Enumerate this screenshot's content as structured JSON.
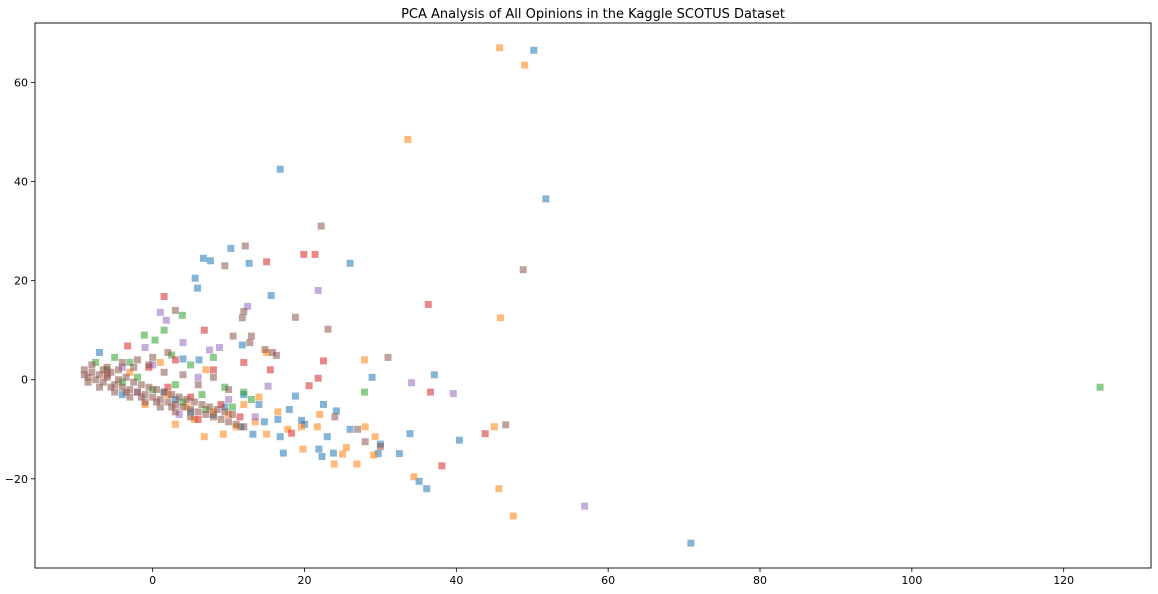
{
  "chart_data": {
    "type": "scatter",
    "title": "PCA Analysis of All Opinions in the Kaggle SCOTUS Dataset",
    "xlabel": "",
    "ylabel": "",
    "xlim": [
      -15.5,
      131.5
    ],
    "ylim": [
      -38,
      72
    ],
    "x_ticks": [
      0,
      20,
      40,
      60,
      80,
      100,
      120
    ],
    "y_ticks": [
      -20,
      0,
      20,
      40,
      60
    ],
    "x_tick_labels": [
      "0",
      "20",
      "40",
      "60",
      "80",
      "100",
      "120"
    ],
    "y_tick_labels": [
      "−20",
      "0",
      "20",
      "40",
      "60"
    ],
    "grid": false,
    "legend": "none",
    "marker": "square",
    "marker_opacity": 0.55,
    "series": [
      {
        "color": "#1f77b4",
        "points": [
          [
            50.2,
            66.5
          ],
          [
            16.8,
            42.5
          ],
          [
            51.8,
            36.5
          ],
          [
            10.3,
            26.5
          ],
          [
            6.7,
            24.5
          ],
          [
            7.6,
            24.0
          ],
          [
            12.7,
            23.5
          ],
          [
            26.0,
            23.5
          ],
          [
            5.6,
            20.5
          ],
          [
            5.9,
            18.5
          ],
          [
            15.6,
            17.0
          ],
          [
            11.8,
            7.0
          ],
          [
            4.0,
            4.2
          ],
          [
            6.1,
            4.0
          ],
          [
            28.9,
            0.5
          ],
          [
            37.1,
            1.0
          ],
          [
            18.8,
            -3.3
          ],
          [
            22.5,
            -5.0
          ],
          [
            24.2,
            -6.3
          ],
          [
            16.5,
            -8.0
          ],
          [
            19.6,
            -8.2
          ],
          [
            14.7,
            -8.5
          ],
          [
            11.6,
            -9.5
          ],
          [
            33.9,
            -10.9
          ],
          [
            13.2,
            -11.0
          ],
          [
            16.8,
            -11.5
          ],
          [
            23.0,
            -11.5
          ],
          [
            40.4,
            -12.2
          ],
          [
            21.9,
            -14.0
          ],
          [
            17.2,
            -14.8
          ],
          [
            23.8,
            -14.8
          ],
          [
            29.7,
            -14.9
          ],
          [
            32.5,
            -14.9
          ],
          [
            22.3,
            -15.5
          ],
          [
            35.1,
            -20.5
          ],
          [
            36.1,
            -22.0
          ],
          [
            70.9,
            -33.0
          ],
          [
            -7.0,
            5.5
          ],
          [
            8.0,
            -7.0
          ],
          [
            3.0,
            -4.0
          ],
          [
            9.5,
            -5.5
          ],
          [
            -4.0,
            -3.0
          ],
          [
            1.5,
            -2.5
          ],
          [
            5.0,
            -6.5
          ],
          [
            12.0,
            -3.0
          ],
          [
            18.0,
            -6.0
          ],
          [
            26.0,
            -10.0
          ],
          [
            30.0,
            -13.0
          ],
          [
            14.0,
            -5.0
          ],
          [
            20.0,
            -9.0
          ]
        ]
      },
      {
        "color": "#ff7f0e",
        "points": [
          [
            45.7,
            67.0
          ],
          [
            49.0,
            63.5
          ],
          [
            33.6,
            48.5
          ],
          [
            45.8,
            12.5
          ],
          [
            27.9,
            4.0
          ],
          [
            15.0,
            5.5
          ],
          [
            19.6,
            -9.5
          ],
          [
            45.0,
            -9.5
          ],
          [
            19.8,
            -14.0
          ],
          [
            21.7,
            -9.5
          ],
          [
            26.9,
            -17.0
          ],
          [
            23.9,
            -17.0
          ],
          [
            25.5,
            -13.7
          ],
          [
            29.3,
            -11.5
          ],
          [
            29.1,
            -15.2
          ],
          [
            34.4,
            -19.6
          ],
          [
            45.6,
            -22.0
          ],
          [
            47.5,
            -27.5
          ],
          [
            6.8,
            -11.5
          ],
          [
            9.3,
            -11.0
          ],
          [
            11.0,
            -9.5
          ],
          [
            13.5,
            -8.5
          ],
          [
            16.5,
            -6.5
          ],
          [
            17.8,
            -10.0
          ],
          [
            2.0,
            -3.0
          ],
          [
            4.5,
            -5.5
          ],
          [
            8.0,
            -6.5
          ],
          [
            3.0,
            -9.0
          ],
          [
            5.5,
            -8.0
          ],
          [
            10.0,
            -7.0
          ],
          [
            -1.0,
            -5.0
          ],
          [
            15.0,
            -11.0
          ],
          [
            22.0,
            -7.0
          ],
          [
            25.0,
            -15.0
          ],
          [
            28.0,
            -9.5
          ],
          [
            14.0,
            -3.5
          ],
          [
            12.0,
            -5.0
          ],
          [
            7.0,
            2.0
          ],
          [
            1.0,
            3.5
          ],
          [
            -3.0,
            1.5
          ]
        ]
      },
      {
        "color": "#2ca02c",
        "points": [
          [
            124.8,
            -1.5
          ],
          [
            27.9,
            -2.5
          ],
          [
            -1.1,
            9.0
          ],
          [
            1.5,
            10.0
          ],
          [
            3.9,
            13.0
          ],
          [
            0.3,
            8.0
          ],
          [
            -5.0,
            4.5
          ],
          [
            -7.5,
            3.5
          ],
          [
            -6.0,
            2.0
          ],
          [
            -3.0,
            3.5
          ],
          [
            2.5,
            5.0
          ],
          [
            5.0,
            3.0
          ],
          [
            8.0,
            4.5
          ],
          [
            -2.0,
            0.5
          ],
          [
            4.0,
            -4.5
          ],
          [
            6.5,
            -3.0
          ],
          [
            9.5,
            -1.5
          ],
          [
            12.0,
            -2.5
          ],
          [
            10.5,
            -5.5
          ],
          [
            13.0,
            -4.0
          ],
          [
            7.0,
            -6.0
          ],
          [
            3.0,
            -1.0
          ],
          [
            0.0,
            -2.0
          ],
          [
            -4.0,
            -0.5
          ]
        ]
      },
      {
        "color": "#d62728",
        "points": [
          [
            15.0,
            23.8
          ],
          [
            19.9,
            25.3
          ],
          [
            21.4,
            25.3
          ],
          [
            1.5,
            16.8
          ],
          [
            36.3,
            15.2
          ],
          [
            6.8,
            10.0
          ],
          [
            22.5,
            3.8
          ],
          [
            12.0,
            3.5
          ],
          [
            15.5,
            2.0
          ],
          [
            21.8,
            0.3
          ],
          [
            8.0,
            2.0
          ],
          [
            -3.3,
            6.8
          ],
          [
            43.8,
            -10.9
          ],
          [
            18.3,
            -10.8
          ],
          [
            38.1,
            -17.4
          ],
          [
            20.6,
            -1.2
          ],
          [
            36.6,
            -2.5
          ],
          [
            3.0,
            4.0
          ],
          [
            -0.5,
            2.5
          ],
          [
            5.0,
            -3.5
          ],
          [
            9.0,
            -5.0
          ],
          [
            2.0,
            -1.5
          ],
          [
            -6.0,
            1.0
          ],
          [
            11.5,
            -7.5
          ],
          [
            6.0,
            -8.0
          ]
        ]
      },
      {
        "color": "#9467bd",
        "points": [
          [
            21.8,
            18.0
          ],
          [
            12.5,
            14.8
          ],
          [
            1.0,
            13.6
          ],
          [
            1.8,
            12.0
          ],
          [
            -1.0,
            6.5
          ],
          [
            4.0,
            7.5
          ],
          [
            7.5,
            6.0
          ],
          [
            8.8,
            6.5
          ],
          [
            15.2,
            -1.3
          ],
          [
            34.1,
            -0.6
          ],
          [
            39.6,
            -2.8
          ],
          [
            56.9,
            -25.5
          ],
          [
            0.0,
            3.0
          ],
          [
            -4.0,
            2.5
          ],
          [
            6.0,
            0.5
          ],
          [
            10.0,
            -4.0
          ],
          [
            3.5,
            -7.0
          ],
          [
            -2.0,
            -2.5
          ],
          [
            13.5,
            -7.5
          ]
        ]
      },
      {
        "color": "#8c564b",
        "points": [
          [
            22.2,
            31.0
          ],
          [
            12.2,
            27.0
          ],
          [
            9.5,
            23.0
          ],
          [
            48.8,
            22.2
          ],
          [
            12.0,
            13.8
          ],
          [
            11.8,
            12.5
          ],
          [
            18.8,
            12.6
          ],
          [
            23.1,
            10.2
          ],
          [
            10.6,
            8.8
          ],
          [
            12.8,
            7.5
          ],
          [
            13.0,
            8.8
          ],
          [
            14.8,
            6.1
          ],
          [
            15.8,
            5.5
          ],
          [
            31.0,
            4.5
          ],
          [
            16.3,
            4.9
          ],
          [
            46.5,
            -9.1
          ],
          [
            28.0,
            -12.5
          ],
          [
            27.0,
            -10.0
          ],
          [
            24.0,
            -7.5
          ],
          [
            30.0,
            -13.5
          ],
          [
            -9.0,
            1.0
          ],
          [
            -8.5,
            0.5
          ],
          [
            -8.0,
            1.5
          ],
          [
            -7.5,
            0.0
          ],
          [
            -7.0,
            1.0
          ],
          [
            -6.5,
            -0.5
          ],
          [
            -6.0,
            0.5
          ],
          [
            -5.5,
            1.5
          ],
          [
            -5.0,
            -1.0
          ],
          [
            -4.5,
            0.0
          ],
          [
            -4.0,
            -1.5
          ],
          [
            -3.5,
            0.5
          ],
          [
            -3.0,
            -2.0
          ],
          [
            -2.5,
            -0.5
          ],
          [
            -2.0,
            -2.5
          ],
          [
            -1.5,
            -1.0
          ],
          [
            -1.0,
            -3.0
          ],
          [
            -0.5,
            -1.5
          ],
          [
            0.0,
            -3.5
          ],
          [
            0.5,
            -2.0
          ],
          [
            1.0,
            -4.0
          ],
          [
            1.5,
            -2.5
          ],
          [
            2.0,
            -4.5
          ],
          [
            2.5,
            -3.0
          ],
          [
            3.0,
            -5.0
          ],
          [
            3.5,
            -3.5
          ],
          [
            4.0,
            -5.5
          ],
          [
            4.5,
            -4.0
          ],
          [
            5.0,
            -6.0
          ],
          [
            5.5,
            -4.5
          ],
          [
            6.0,
            -6.5
          ],
          [
            6.5,
            -5.0
          ],
          [
            7.0,
            -7.0
          ],
          [
            7.5,
            -5.5
          ],
          [
            8.0,
            -7.5
          ],
          [
            8.5,
            -6.0
          ],
          [
            9.0,
            -8.0
          ],
          [
            9.5,
            -6.5
          ],
          [
            10.0,
            -8.5
          ],
          [
            10.5,
            -7.0
          ],
          [
            11.0,
            -9.0
          ],
          [
            12.0,
            -9.5
          ],
          [
            -8.0,
            3.0
          ],
          [
            -6.0,
            2.5
          ],
          [
            -4.0,
            3.5
          ],
          [
            -2.0,
            4.0
          ],
          [
            0.0,
            4.5
          ],
          [
            2.0,
            5.5
          ],
          [
            3.0,
            14.0
          ],
          [
            -7.0,
            -1.5
          ],
          [
            -5.0,
            -2.5
          ],
          [
            -3.0,
            -3.5
          ],
          [
            -1.0,
            -4.5
          ],
          [
            1.0,
            -5.5
          ],
          [
            3.0,
            -6.5
          ],
          [
            5.0,
            -7.5
          ],
          [
            -9.0,
            2.0
          ],
          [
            -8.5,
            -0.5
          ],
          [
            -6.5,
            2.0
          ],
          [
            -5.5,
            -1.5
          ],
          [
            -4.5,
            2.0
          ],
          [
            -3.5,
            -2.5
          ],
          [
            -2.5,
            2.5
          ],
          [
            -1.5,
            -3.5
          ],
          [
            -0.5,
            3.0
          ],
          [
            0.5,
            -4.5
          ],
          [
            1.5,
            1.5
          ],
          [
            2.5,
            -5.5
          ],
          [
            4.0,
            1.0
          ],
          [
            6.0,
            -1.0
          ],
          [
            8.0,
            0.5
          ],
          [
            10.0,
            -2.0
          ]
        ]
      }
    ]
  }
}
